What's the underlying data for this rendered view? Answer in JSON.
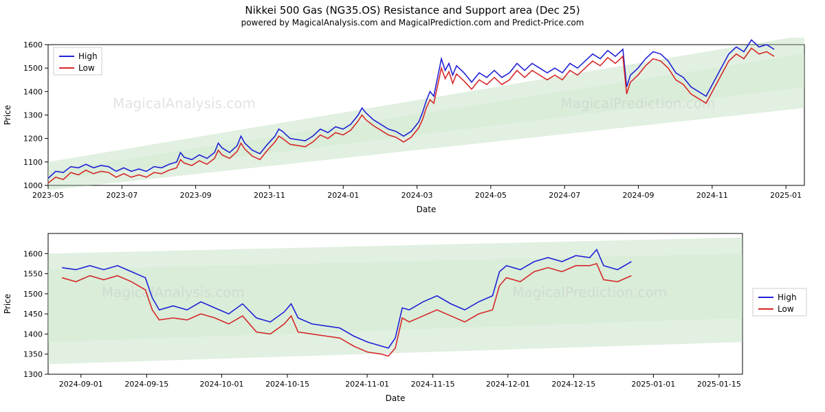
{
  "title": "Nikkei 500 Gas (NG35.OS) Resistance and Support area (Dec 25)",
  "subtitle": "powered by MagicalAnalysis.com and MagicalPrediction.com and Predict-Price.com",
  "legend": {
    "high": "High",
    "low": "Low"
  },
  "axis": {
    "ylabel": "Price",
    "xlabel": "Date"
  },
  "colors": {
    "high": "#1f1fd6",
    "low": "#d62728",
    "band": "#a8d5a8",
    "band_inner": "#cce8cc",
    "bg": "#ffffff",
    "axis": "#000000",
    "watermark": "#cccccc"
  },
  "watermarks": [
    "MagicalAnalysis.com",
    "MagicalPrediction.com"
  ],
  "chart1": {
    "type": "line",
    "ylim": [
      1000,
      1600
    ],
    "ytick_step": 100,
    "yticks": [
      1000,
      1100,
      1200,
      1300,
      1400,
      1500,
      1600
    ],
    "xticks": [
      "2023-05",
      "2023-07",
      "2023-09",
      "2023-11",
      "2024-01",
      "2024-03",
      "2024-05",
      "2024-07",
      "2024-09",
      "2024-11",
      "2025-01"
    ],
    "x_range": [
      "2023-05-01",
      "2025-01-15"
    ],
    "band_upper": [
      [
        0,
        1100
      ],
      [
        1,
        1640
      ]
    ],
    "band_lower": [
      [
        0,
        980
      ],
      [
        1,
        1330
      ]
    ],
    "band_inner_upper": [
      [
        0,
        1060
      ],
      [
        1,
        1560
      ]
    ],
    "band_inner_lower": [
      [
        0,
        1020
      ],
      [
        1,
        1420
      ]
    ],
    "high": [
      [
        0.0,
        1030
      ],
      [
        0.01,
        1060
      ],
      [
        0.02,
        1055
      ],
      [
        0.03,
        1080
      ],
      [
        0.04,
        1075
      ],
      [
        0.05,
        1090
      ],
      [
        0.06,
        1075
      ],
      [
        0.07,
        1085
      ],
      [
        0.08,
        1080
      ],
      [
        0.09,
        1060
      ],
      [
        0.1,
        1075
      ],
      [
        0.11,
        1060
      ],
      [
        0.12,
        1070
      ],
      [
        0.13,
        1060
      ],
      [
        0.14,
        1080
      ],
      [
        0.15,
        1075
      ],
      [
        0.16,
        1090
      ],
      [
        0.17,
        1100
      ],
      [
        0.175,
        1140
      ],
      [
        0.18,
        1120
      ],
      [
        0.19,
        1110
      ],
      [
        0.2,
        1130
      ],
      [
        0.21,
        1115
      ],
      [
        0.22,
        1140
      ],
      [
        0.225,
        1180
      ],
      [
        0.23,
        1160
      ],
      [
        0.24,
        1140
      ],
      [
        0.25,
        1170
      ],
      [
        0.255,
        1210
      ],
      [
        0.26,
        1180
      ],
      [
        0.27,
        1150
      ],
      [
        0.28,
        1135
      ],
      [
        0.29,
        1175
      ],
      [
        0.3,
        1210
      ],
      [
        0.305,
        1240
      ],
      [
        0.31,
        1230
      ],
      [
        0.32,
        1200
      ],
      [
        0.33,
        1195
      ],
      [
        0.34,
        1190
      ],
      [
        0.35,
        1210
      ],
      [
        0.36,
        1240
      ],
      [
        0.37,
        1225
      ],
      [
        0.38,
        1250
      ],
      [
        0.39,
        1240
      ],
      [
        0.4,
        1260
      ],
      [
        0.41,
        1300
      ],
      [
        0.415,
        1330
      ],
      [
        0.42,
        1310
      ],
      [
        0.43,
        1280
      ],
      [
        0.44,
        1260
      ],
      [
        0.45,
        1240
      ],
      [
        0.46,
        1230
      ],
      [
        0.47,
        1210
      ],
      [
        0.48,
        1230
      ],
      [
        0.49,
        1270
      ],
      [
        0.495,
        1310
      ],
      [
        0.5,
        1360
      ],
      [
        0.505,
        1400
      ],
      [
        0.51,
        1380
      ],
      [
        0.52,
        1540
      ],
      [
        0.525,
        1490
      ],
      [
        0.53,
        1520
      ],
      [
        0.535,
        1470
      ],
      [
        0.54,
        1510
      ],
      [
        0.55,
        1480
      ],
      [
        0.56,
        1440
      ],
      [
        0.57,
        1480
      ],
      [
        0.58,
        1460
      ],
      [
        0.59,
        1490
      ],
      [
        0.6,
        1460
      ],
      [
        0.61,
        1480
      ],
      [
        0.62,
        1520
      ],
      [
        0.63,
        1490
      ],
      [
        0.64,
        1520
      ],
      [
        0.65,
        1500
      ],
      [
        0.66,
        1480
      ],
      [
        0.67,
        1500
      ],
      [
        0.68,
        1480
      ],
      [
        0.69,
        1520
      ],
      [
        0.7,
        1500
      ],
      [
        0.71,
        1530
      ],
      [
        0.72,
        1560
      ],
      [
        0.73,
        1540
      ],
      [
        0.74,
        1575
      ],
      [
        0.75,
        1550
      ],
      [
        0.76,
        1580
      ],
      [
        0.765,
        1420
      ],
      [
        0.77,
        1470
      ],
      [
        0.78,
        1500
      ],
      [
        0.79,
        1540
      ],
      [
        0.8,
        1570
      ],
      [
        0.81,
        1560
      ],
      [
        0.82,
        1530
      ],
      [
        0.83,
        1480
      ],
      [
        0.84,
        1460
      ],
      [
        0.85,
        1420
      ],
      [
        0.86,
        1400
      ],
      [
        0.87,
        1380
      ],
      [
        0.88,
        1440
      ],
      [
        0.89,
        1500
      ],
      [
        0.9,
        1560
      ],
      [
        0.91,
        1590
      ],
      [
        0.92,
        1570
      ],
      [
        0.93,
        1620
      ],
      [
        0.94,
        1590
      ],
      [
        0.95,
        1600
      ],
      [
        0.96,
        1580
      ]
    ],
    "low": [
      [
        0.0,
        1010
      ],
      [
        0.01,
        1035
      ],
      [
        0.02,
        1025
      ],
      [
        0.03,
        1055
      ],
      [
        0.04,
        1045
      ],
      [
        0.05,
        1065
      ],
      [
        0.06,
        1050
      ],
      [
        0.07,
        1060
      ],
      [
        0.08,
        1055
      ],
      [
        0.09,
        1035
      ],
      [
        0.1,
        1050
      ],
      [
        0.11,
        1035
      ],
      [
        0.12,
        1045
      ],
      [
        0.13,
        1035
      ],
      [
        0.14,
        1055
      ],
      [
        0.15,
        1050
      ],
      [
        0.16,
        1065
      ],
      [
        0.17,
        1075
      ],
      [
        0.175,
        1110
      ],
      [
        0.18,
        1095
      ],
      [
        0.19,
        1085
      ],
      [
        0.2,
        1105
      ],
      [
        0.21,
        1090
      ],
      [
        0.22,
        1115
      ],
      [
        0.225,
        1150
      ],
      [
        0.23,
        1130
      ],
      [
        0.24,
        1115
      ],
      [
        0.25,
        1145
      ],
      [
        0.255,
        1180
      ],
      [
        0.26,
        1155
      ],
      [
        0.27,
        1125
      ],
      [
        0.28,
        1110
      ],
      [
        0.29,
        1150
      ],
      [
        0.3,
        1185
      ],
      [
        0.305,
        1210
      ],
      [
        0.31,
        1200
      ],
      [
        0.32,
        1175
      ],
      [
        0.33,
        1170
      ],
      [
        0.34,
        1165
      ],
      [
        0.35,
        1185
      ],
      [
        0.36,
        1215
      ],
      [
        0.37,
        1200
      ],
      [
        0.38,
        1225
      ],
      [
        0.39,
        1215
      ],
      [
        0.4,
        1235
      ],
      [
        0.41,
        1275
      ],
      [
        0.415,
        1300
      ],
      [
        0.42,
        1280
      ],
      [
        0.43,
        1255
      ],
      [
        0.44,
        1235
      ],
      [
        0.45,
        1215
      ],
      [
        0.46,
        1205
      ],
      [
        0.47,
        1185
      ],
      [
        0.48,
        1205
      ],
      [
        0.49,
        1245
      ],
      [
        0.495,
        1280
      ],
      [
        0.5,
        1330
      ],
      [
        0.505,
        1365
      ],
      [
        0.51,
        1350
      ],
      [
        0.52,
        1500
      ],
      [
        0.525,
        1455
      ],
      [
        0.53,
        1485
      ],
      [
        0.535,
        1435
      ],
      [
        0.54,
        1475
      ],
      [
        0.55,
        1445
      ],
      [
        0.56,
        1410
      ],
      [
        0.57,
        1450
      ],
      [
        0.58,
        1430
      ],
      [
        0.59,
        1460
      ],
      [
        0.6,
        1430
      ],
      [
        0.61,
        1450
      ],
      [
        0.62,
        1490
      ],
      [
        0.63,
        1460
      ],
      [
        0.64,
        1490
      ],
      [
        0.65,
        1470
      ],
      [
        0.66,
        1450
      ],
      [
        0.67,
        1470
      ],
      [
        0.68,
        1450
      ],
      [
        0.69,
        1490
      ],
      [
        0.7,
        1470
      ],
      [
        0.71,
        1500
      ],
      [
        0.72,
        1530
      ],
      [
        0.73,
        1510
      ],
      [
        0.74,
        1545
      ],
      [
        0.75,
        1520
      ],
      [
        0.76,
        1550
      ],
      [
        0.765,
        1390
      ],
      [
        0.77,
        1440
      ],
      [
        0.78,
        1470
      ],
      [
        0.79,
        1510
      ],
      [
        0.8,
        1540
      ],
      [
        0.81,
        1530
      ],
      [
        0.82,
        1500
      ],
      [
        0.83,
        1450
      ],
      [
        0.84,
        1430
      ],
      [
        0.85,
        1390
      ],
      [
        0.86,
        1370
      ],
      [
        0.87,
        1350
      ],
      [
        0.88,
        1410
      ],
      [
        0.89,
        1470
      ],
      [
        0.9,
        1530
      ],
      [
        0.91,
        1560
      ],
      [
        0.92,
        1540
      ],
      [
        0.93,
        1585
      ],
      [
        0.94,
        1560
      ],
      [
        0.95,
        1570
      ],
      [
        0.96,
        1550
      ]
    ]
  },
  "chart2": {
    "type": "line",
    "ylim": [
      1300,
      1650
    ],
    "ytick_step": 50,
    "yticks": [
      1300,
      1350,
      1400,
      1450,
      1500,
      1550,
      1600
    ],
    "xticks": [
      "2024-09-01",
      "2024-09-15",
      "2024-10-01",
      "2024-10-15",
      "2024-11-01",
      "2024-11-15",
      "2024-12-01",
      "2024-12-15",
      "2025-01-01",
      "2025-01-15"
    ],
    "x_range": [
      "2024-08-25",
      "2025-01-20"
    ],
    "band_upper": [
      [
        0,
        1600
      ],
      [
        1,
        1640
      ]
    ],
    "band_lower": [
      [
        0,
        1325
      ],
      [
        1,
        1380
      ]
    ],
    "band_inner_upper": [
      [
        0,
        1560
      ],
      [
        1,
        1600
      ]
    ],
    "band_inner_lower": [
      [
        0,
        1380
      ],
      [
        1,
        1440
      ]
    ],
    "high": [
      [
        0.02,
        1565
      ],
      [
        0.04,
        1560
      ],
      [
        0.06,
        1570
      ],
      [
        0.08,
        1560
      ],
      [
        0.1,
        1570
      ],
      [
        0.12,
        1555
      ],
      [
        0.14,
        1540
      ],
      [
        0.15,
        1490
      ],
      [
        0.16,
        1460
      ],
      [
        0.18,
        1470
      ],
      [
        0.2,
        1460
      ],
      [
        0.22,
        1480
      ],
      [
        0.24,
        1465
      ],
      [
        0.26,
        1450
      ],
      [
        0.28,
        1475
      ],
      [
        0.3,
        1440
      ],
      [
        0.32,
        1430
      ],
      [
        0.34,
        1455
      ],
      [
        0.35,
        1475
      ],
      [
        0.36,
        1440
      ],
      [
        0.38,
        1425
      ],
      [
        0.4,
        1420
      ],
      [
        0.42,
        1415
      ],
      [
        0.44,
        1395
      ],
      [
        0.46,
        1380
      ],
      [
        0.48,
        1370
      ],
      [
        0.49,
        1365
      ],
      [
        0.5,
        1390
      ],
      [
        0.51,
        1465
      ],
      [
        0.52,
        1460
      ],
      [
        0.54,
        1480
      ],
      [
        0.56,
        1495
      ],
      [
        0.58,
        1475
      ],
      [
        0.6,
        1460
      ],
      [
        0.62,
        1480
      ],
      [
        0.64,
        1495
      ],
      [
        0.65,
        1555
      ],
      [
        0.66,
        1570
      ],
      [
        0.68,
        1560
      ],
      [
        0.7,
        1580
      ],
      [
        0.72,
        1590
      ],
      [
        0.74,
        1580
      ],
      [
        0.76,
        1595
      ],
      [
        0.78,
        1590
      ],
      [
        0.79,
        1610
      ],
      [
        0.8,
        1570
      ],
      [
        0.82,
        1560
      ],
      [
        0.84,
        1580
      ]
    ],
    "low": [
      [
        0.02,
        1540
      ],
      [
        0.04,
        1530
      ],
      [
        0.06,
        1545
      ],
      [
        0.08,
        1535
      ],
      [
        0.1,
        1545
      ],
      [
        0.12,
        1530
      ],
      [
        0.14,
        1510
      ],
      [
        0.15,
        1460
      ],
      [
        0.16,
        1435
      ],
      [
        0.18,
        1440
      ],
      [
        0.2,
        1435
      ],
      [
        0.22,
        1450
      ],
      [
        0.24,
        1440
      ],
      [
        0.26,
        1425
      ],
      [
        0.28,
        1445
      ],
      [
        0.3,
        1405
      ],
      [
        0.32,
        1400
      ],
      [
        0.34,
        1425
      ],
      [
        0.35,
        1445
      ],
      [
        0.36,
        1405
      ],
      [
        0.38,
        1400
      ],
      [
        0.4,
        1395
      ],
      [
        0.42,
        1390
      ],
      [
        0.44,
        1370
      ],
      [
        0.46,
        1355
      ],
      [
        0.48,
        1350
      ],
      [
        0.49,
        1345
      ],
      [
        0.5,
        1365
      ],
      [
        0.51,
        1440
      ],
      [
        0.52,
        1430
      ],
      [
        0.54,
        1445
      ],
      [
        0.56,
        1460
      ],
      [
        0.58,
        1445
      ],
      [
        0.6,
        1430
      ],
      [
        0.62,
        1450
      ],
      [
        0.64,
        1460
      ],
      [
        0.65,
        1520
      ],
      [
        0.66,
        1540
      ],
      [
        0.68,
        1530
      ],
      [
        0.7,
        1555
      ],
      [
        0.72,
        1565
      ],
      [
        0.74,
        1555
      ],
      [
        0.76,
        1570
      ],
      [
        0.78,
        1570
      ],
      [
        0.79,
        1575
      ],
      [
        0.8,
        1535
      ],
      [
        0.82,
        1530
      ],
      [
        0.84,
        1545
      ]
    ]
  }
}
